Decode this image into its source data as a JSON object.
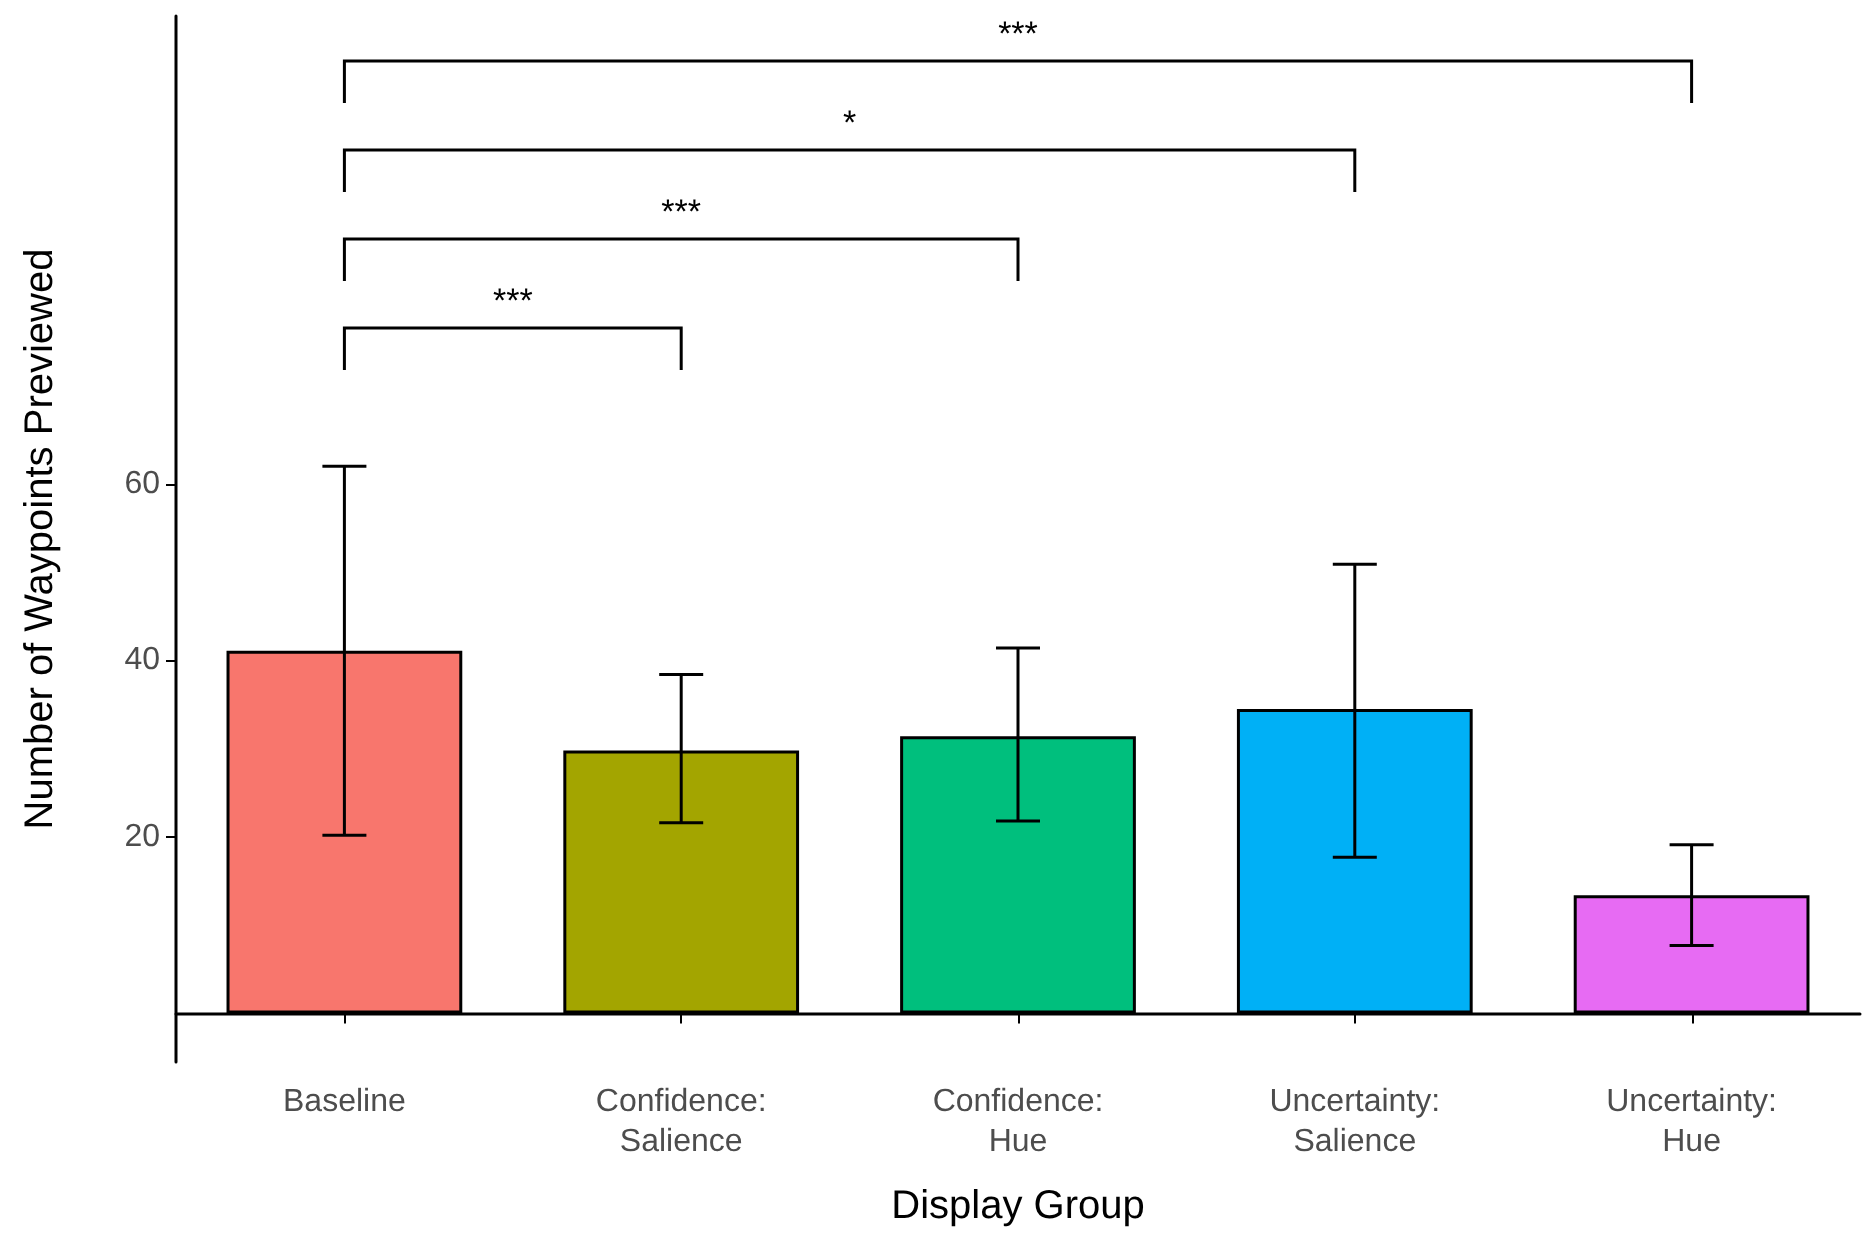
{
  "chart_data": {
    "type": "bar",
    "xlabel": "Display Group",
    "ylabel": "Number of Waypoints Previewed",
    "categories": [
      "Baseline",
      "Confidence:\nSalience",
      "Confidence:\nHue",
      "Uncertainty:\nSalience",
      "Uncertainty:\nHue"
    ],
    "values": [
      41.1,
      29.8,
      31.4,
      34.5,
      13.4
    ],
    "colors": [
      "#f8766d",
      "#a3a500",
      "#00bf7d",
      "#00b0f6",
      "#e76bf3"
    ],
    "errors": [
      [
        20.2,
        62.0
      ],
      [
        21.6,
        38.4
      ],
      [
        21.8,
        41.4
      ],
      [
        17.7,
        50.9
      ],
      [
        7.7,
        19.1
      ]
    ],
    "ylim": [
      -5.5,
      113
    ],
    "yticks": [
      20,
      40,
      60
    ],
    "grid": false,
    "annotations": [
      "***",
      "***",
      "*",
      "***"
    ]
  }
}
